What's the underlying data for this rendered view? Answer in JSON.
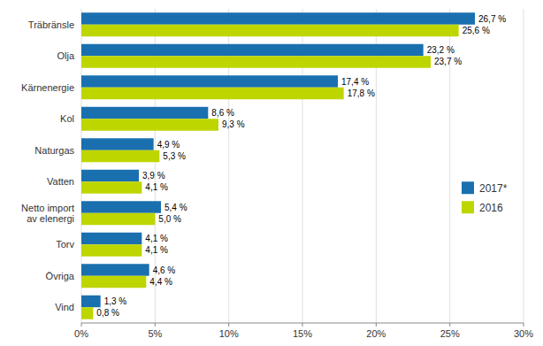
{
  "chart_data": {
    "type": "bar",
    "orientation": "horizontal",
    "categories": [
      "Träbränsle",
      "Olja",
      "Kärnenergie",
      "Kol",
      "Naturgas",
      "Vatten",
      "Netto import\nav elenergi",
      "Torv",
      "Övriga",
      "Vind"
    ],
    "series": [
      {
        "name": "2017*",
        "color": "#1a6faf",
        "values": [
          26.7,
          23.2,
          17.4,
          8.6,
          4.9,
          3.9,
          5.4,
          4.1,
          4.6,
          1.3
        ],
        "value_labels": [
          "26,7 %",
          "23,2 %",
          "17,4 %",
          "8,6 %",
          "4,9 %",
          "3,9 %",
          "5,4 %",
          "4,1 %",
          "4,6 %",
          "1,3 %"
        ]
      },
      {
        "name": "2016",
        "color": "#bed600",
        "values": [
          25.6,
          23.7,
          17.8,
          9.3,
          5.3,
          4.1,
          5.0,
          4.1,
          4.4,
          0.8
        ],
        "value_labels": [
          "25,6 %",
          "23,7 %",
          "17,8 %",
          "9,3 %",
          "5,3 %",
          "4,1 %",
          "5,0 %",
          "4,1 %",
          "4,4 %",
          "0,8 %"
        ]
      }
    ],
    "xlim": [
      0,
      30
    ],
    "xticks": [
      {
        "value": 0,
        "label": "0%"
      },
      {
        "value": 5,
        "label": "5%"
      },
      {
        "value": 10,
        "label": "10%"
      },
      {
        "value": 15,
        "label": "15%"
      },
      {
        "value": 20,
        "label": "20%"
      },
      {
        "value": 25,
        "label": "25%"
      },
      {
        "value": 30,
        "label": "30%"
      }
    ],
    "grid": true,
    "legend": "lower right",
    "data_labels": true
  }
}
